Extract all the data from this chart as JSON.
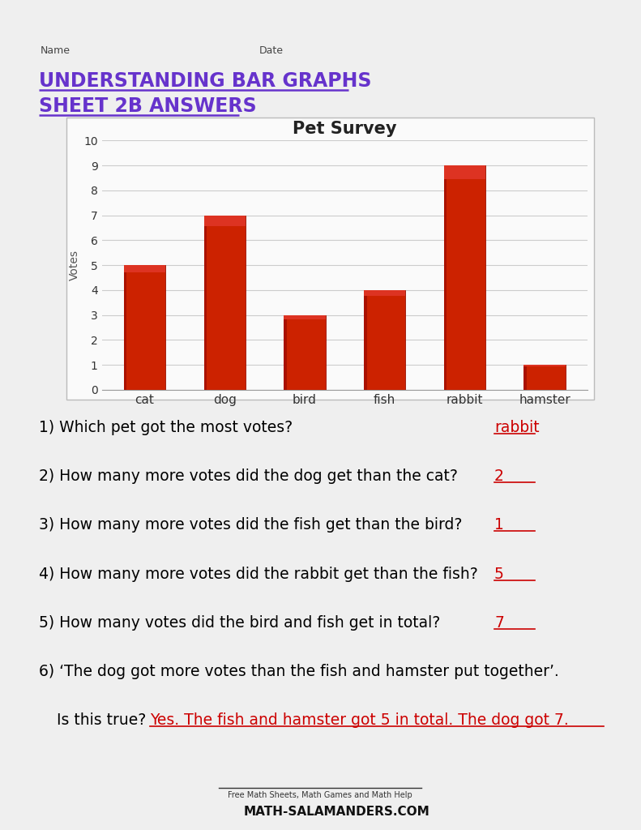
{
  "title_line1": "UNDERSTANDING BAR GRAPHS",
  "title_line2": "SHEET 2B ANSWERS",
  "chart_title": "Pet Survey",
  "categories": [
    "cat",
    "dog",
    "bird",
    "fish",
    "rabbit",
    "hamster"
  ],
  "values": [
    5,
    7,
    3,
    4,
    9,
    1
  ],
  "bar_color": "#cc2200",
  "ylabel": "Votes",
  "ylim": [
    0,
    10
  ],
  "yticks": [
    0,
    1,
    2,
    3,
    4,
    5,
    6,
    7,
    8,
    9,
    10
  ],
  "title_color": "#6633cc",
  "questions": [
    {
      "text": "1) Which pet got the most votes? ",
      "answer": "rabbit"
    },
    {
      "text": "2) How many more votes did the dog get than the cat? ",
      "answer": "2"
    },
    {
      "text": "3) How many more votes did the fish get than the bird? ",
      "answer": "1"
    },
    {
      "text": "4) How many more votes did the rabbit get than the fish? ",
      "answer": "5"
    },
    {
      "text": "5) How many votes did the bird and fish get in total? ",
      "answer": "7"
    },
    {
      "text": "6) ‘The dog got more votes than the fish and hamster put together’.",
      "answer": null
    },
    {
      "text": "Is this true? ",
      "answer": "Yes. The fish and hamster got 5 in total. The dog got 7."
    }
  ],
  "answer_color": "#cc0000",
  "question_color": "#000000",
  "name_label": "Name",
  "date_label": "Date",
  "footer_text": "Free Math Sheets, Math Games and Math Help",
  "footer_site": "ATH-SALAMANDERS.COM"
}
